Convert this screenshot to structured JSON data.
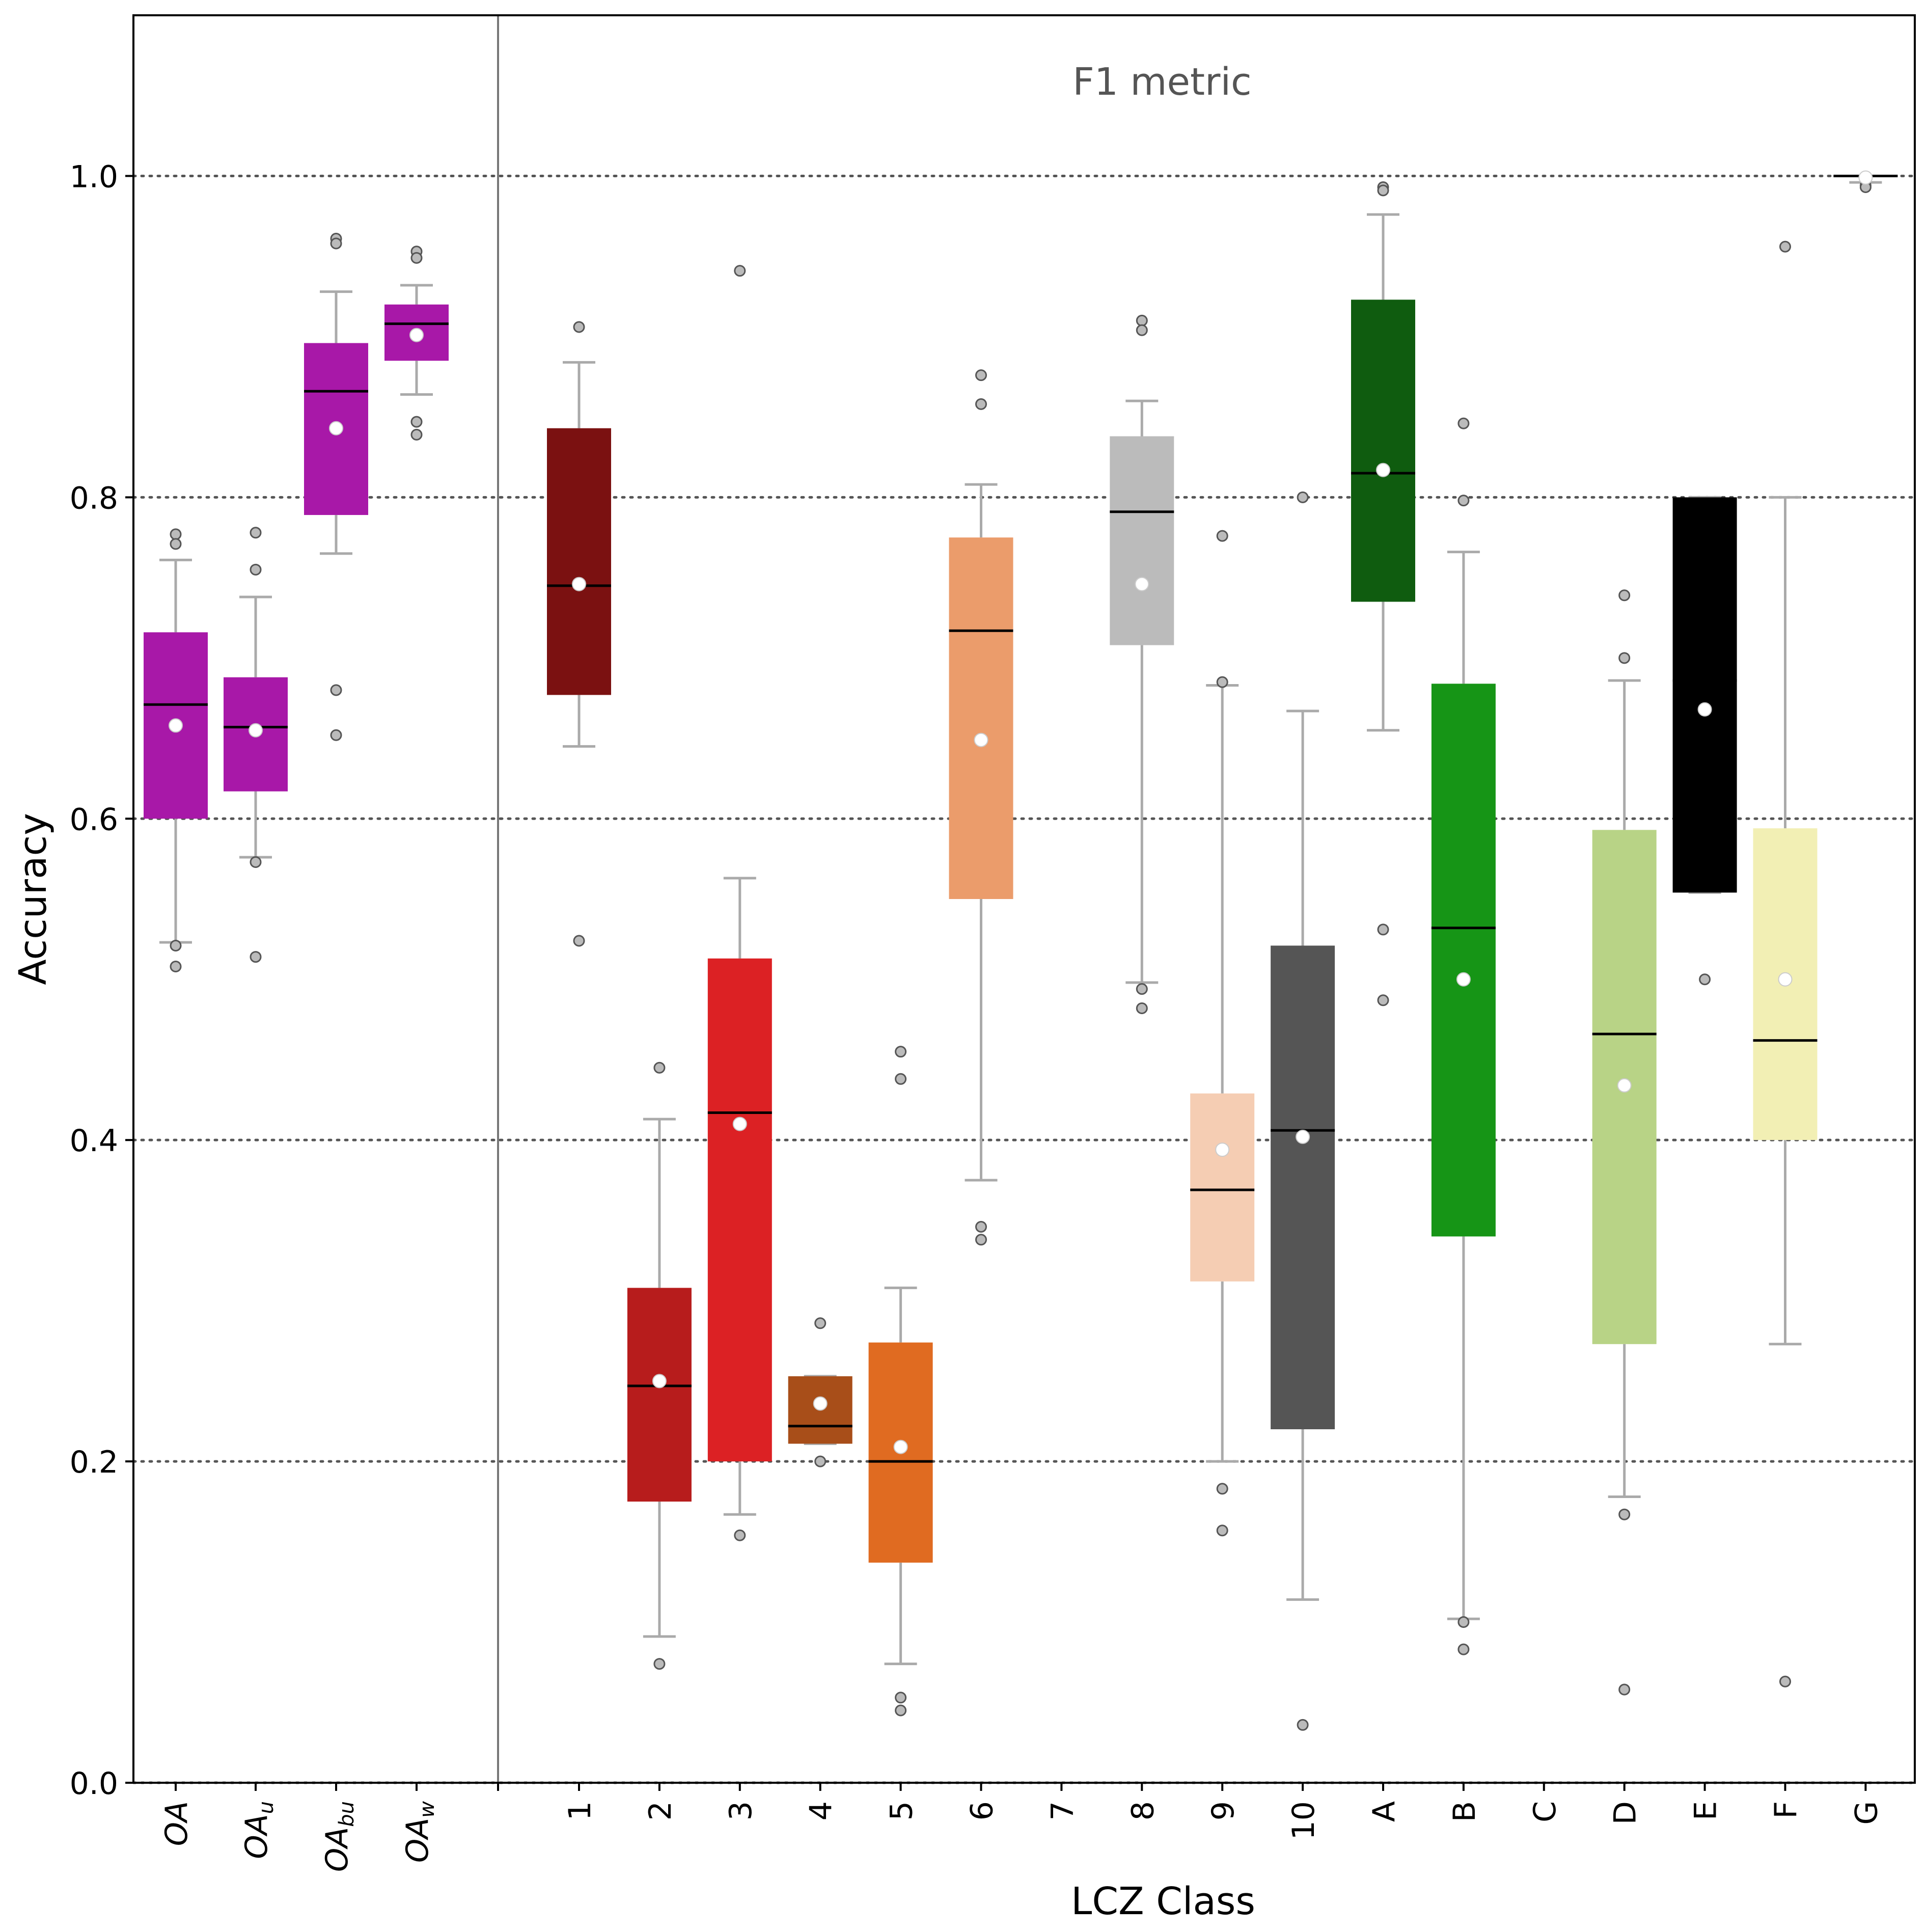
{
  "chart_data": {
    "type": "box",
    "annotation": "F1 metric",
    "xlabel": "LCZ Class",
    "ylabel": "Accuracy",
    "ylim": [
      0.0,
      1.1
    ],
    "yticks": [
      "0.0",
      "0.2",
      "0.4",
      "0.6",
      "0.8",
      "1.0"
    ],
    "grid": "horizontal dotted at 0.2 intervals",
    "colors": {
      "whisker": "#aaaaaa",
      "median": "#000000",
      "mean_marker": "#ffffff",
      "outlier_fill": "#bbbbbb",
      "separator": "#777777",
      "grid": "#555555"
    },
    "overall_groups": [
      {
        "base": "OA",
        "sub": "",
        "color": "#a818a8",
        "q1": 0.6,
        "median": 0.671,
        "q3": 0.716,
        "wlo": 0.523,
        "whi": 0.761,
        "mean": 0.658,
        "outliers": [
          0.777,
          0.771,
          0.521,
          0.508
        ]
      },
      {
        "base": "OA",
        "sub": "u",
        "color": "#a818a8",
        "q1": 0.617,
        "median": 0.657,
        "q3": 0.688,
        "wlo": 0.576,
        "whi": 0.738,
        "mean": 0.655,
        "outliers": [
          0.778,
          0.755,
          0.573,
          0.514
        ]
      },
      {
        "base": "OA",
        "sub": "bu",
        "color": "#a818a8",
        "q1": 0.789,
        "median": 0.866,
        "q3": 0.896,
        "wlo": 0.765,
        "whi": 0.928,
        "mean": 0.843,
        "outliers": [
          0.961,
          0.958,
          0.68,
          0.652
        ]
      },
      {
        "base": "OA",
        "sub": "w",
        "color": "#a818a8",
        "q1": 0.885,
        "median": 0.908,
        "q3": 0.92,
        "wlo": 0.864,
        "whi": 0.932,
        "mean": 0.901,
        "outliers": [
          0.953,
          0.949,
          0.847,
          0.839
        ]
      }
    ],
    "categories": [
      "1",
      "2",
      "3",
      "4",
      "5",
      "6",
      "7",
      "8",
      "9",
      "10",
      "A",
      "B",
      "C",
      "D",
      "E",
      "F",
      "G"
    ],
    "series": [
      {
        "category": "1",
        "color": "#7b1111",
        "q1": 0.677,
        "median": 0.745,
        "q3": 0.843,
        "wlo": 0.645,
        "whi": 0.884,
        "mean": 0.746,
        "outliers": [
          0.906,
          0.524
        ]
      },
      {
        "category": "2",
        "color": "#b71c1c",
        "q1": 0.175,
        "median": 0.247,
        "q3": 0.308,
        "wlo": 0.091,
        "whi": 0.413,
        "mean": 0.25,
        "outliers": [
          0.445,
          0.074
        ]
      },
      {
        "category": "3",
        "color": "#dc2124",
        "q1": 0.2,
        "median": 0.417,
        "q3": 0.513,
        "wlo": 0.167,
        "whi": 0.563,
        "mean": 0.41,
        "outliers": [
          0.941,
          0.154
        ]
      },
      {
        "category": "4",
        "color": "#a84e19",
        "q1": 0.211,
        "median": 0.222,
        "q3": 0.253,
        "wlo": 0.211,
        "whi": 0.253,
        "mean": 0.236,
        "outliers": [
          0.286,
          0.2
        ]
      },
      {
        "category": "5",
        "color": "#e06b21",
        "q1": 0.137,
        "median": 0.2,
        "q3": 0.274,
        "wlo": 0.074,
        "whi": 0.308,
        "mean": 0.209,
        "outliers": [
          0.455,
          0.438,
          0.053,
          0.045
        ]
      },
      {
        "category": "6",
        "color": "#eb9c6b",
        "q1": 0.55,
        "median": 0.717,
        "q3": 0.775,
        "wlo": 0.375,
        "whi": 0.808,
        "mean": 0.649,
        "outliers": [
          0.876,
          0.858,
          0.346,
          0.338
        ]
      },
      {
        "category": "7"
      },
      {
        "category": "8",
        "color": "#bbbbbb",
        "q1": 0.708,
        "median": 0.791,
        "q3": 0.838,
        "wlo": 0.498,
        "whi": 0.86,
        "mean": 0.746,
        "outliers": [
          0.91,
          0.904,
          0.494,
          0.482
        ]
      },
      {
        "category": "9",
        "color": "#f5cdb3",
        "q1": 0.312,
        "median": 0.369,
        "q3": 0.429,
        "wlo": 0.2,
        "whi": 0.683,
        "mean": 0.394,
        "outliers": [
          0.776,
          0.685,
          0.183,
          0.157
        ]
      },
      {
        "category": "10",
        "color": "#555555",
        "q1": 0.22,
        "median": 0.406,
        "q3": 0.521,
        "wlo": 0.114,
        "whi": 0.667,
        "mean": 0.402,
        "outliers": [
          0.8,
          0.036
        ]
      },
      {
        "category": "A",
        "color": "#0f5c0f",
        "q1": 0.735,
        "median": 0.815,
        "q3": 0.923,
        "wlo": 0.655,
        "whi": 0.976,
        "mean": 0.817,
        "outliers": [
          0.993,
          0.991,
          0.531,
          0.487
        ]
      },
      {
        "category": "B",
        "color": "#169516",
        "q1": 0.34,
        "median": 0.532,
        "q3": 0.684,
        "wlo": 0.102,
        "whi": 0.766,
        "mean": 0.5,
        "outliers": [
          0.846,
          0.798,
          0.1,
          0.083
        ]
      },
      {
        "category": "C"
      },
      {
        "category": "D",
        "color": "#b8d386",
        "q1": 0.273,
        "median": 0.466,
        "q3": 0.593,
        "wlo": 0.178,
        "whi": 0.686,
        "mean": 0.434,
        "outliers": [
          0.739,
          0.7,
          0.167,
          0.058
        ]
      },
      {
        "category": "E",
        "color": "#000000",
        "q1": 0.554,
        "median": 0.686,
        "q3": 0.8,
        "wlo": 0.554,
        "whi": 0.8,
        "mean": 0.668,
        "outliers": [
          0.5
        ]
      },
      {
        "category": "F",
        "color": "#f2efb4",
        "q1": 0.4,
        "median": 0.462,
        "q3": 0.594,
        "wlo": 0.273,
        "whi": 0.8,
        "mean": 0.5,
        "outliers": [
          0.956,
          0.063
        ]
      },
      {
        "category": "G",
        "color": "#000000",
        "q1": 1.0,
        "median": 1.0,
        "q3": 1.0,
        "wlo": 0.996,
        "whi": 1.0,
        "mean": 0.999,
        "outliers": [
          0.994,
          0.993
        ]
      }
    ]
  }
}
